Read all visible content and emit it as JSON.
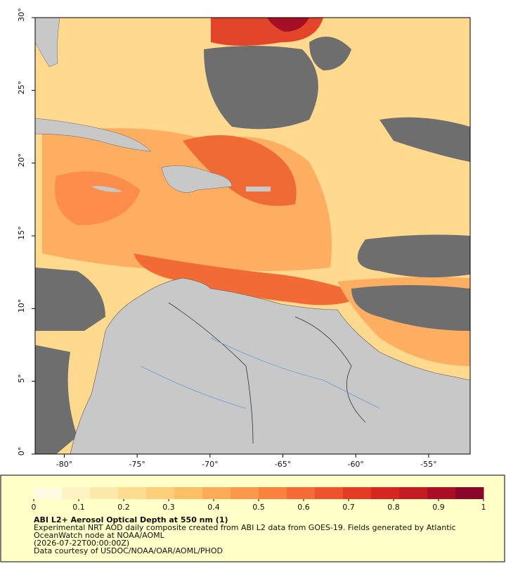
{
  "map": {
    "lon_range": [
      -82,
      -52.15
    ],
    "lat_range": [
      0,
      30
    ],
    "xticks": [
      {
        "value": -80,
        "label": "-80°"
      },
      {
        "value": -75,
        "label": "-75°"
      },
      {
        "value": -70,
        "label": "-70°"
      },
      {
        "value": -65,
        "label": "-65°"
      },
      {
        "value": -60,
        "label": "-60°"
      },
      {
        "value": -55,
        "label": "-55°"
      }
    ],
    "yticks": [
      {
        "value": 0,
        "label": "0°"
      },
      {
        "value": 5,
        "label": "5°"
      },
      {
        "value": 10,
        "label": "10°"
      },
      {
        "value": 15,
        "label": "15°"
      },
      {
        "value": 20,
        "label": "20°"
      },
      {
        "value": 25,
        "label": "25°"
      },
      {
        "value": 30,
        "label": "30°"
      }
    ]
  },
  "colorbar": {
    "range": [
      0,
      1
    ],
    "ticks": [
      0,
      0.1,
      0.2,
      0.3,
      0.4,
      0.5,
      0.6,
      0.7,
      0.8,
      0.9,
      1
    ],
    "colors": [
      "#fffbe0",
      "#fff3c4",
      "#ffe9aa",
      "#fedd90",
      "#fecf78",
      "#fdbe66",
      "#fdab57",
      "#fc984a",
      "#fa823f",
      "#f66b35",
      "#ef532c",
      "#e53a25",
      "#d7261f",
      "#c41a22",
      "#ab0f26",
      "#8a0628"
    ]
  },
  "caption": {
    "title": "ABI L2+ Aerosol Optical Depth at 550 nm (1)",
    "lines": [
      "Experimental NRT AOD daily composite created from ABI L2 data from GOES-19. Fields generated by Atlantic",
      "OceanWatch node at NOAA/AOML",
      "(2026-07-22T00:00:00Z)",
      "Data courtesy of USDOC/NOAA/OAR/AOML/PHOD"
    ]
  }
}
